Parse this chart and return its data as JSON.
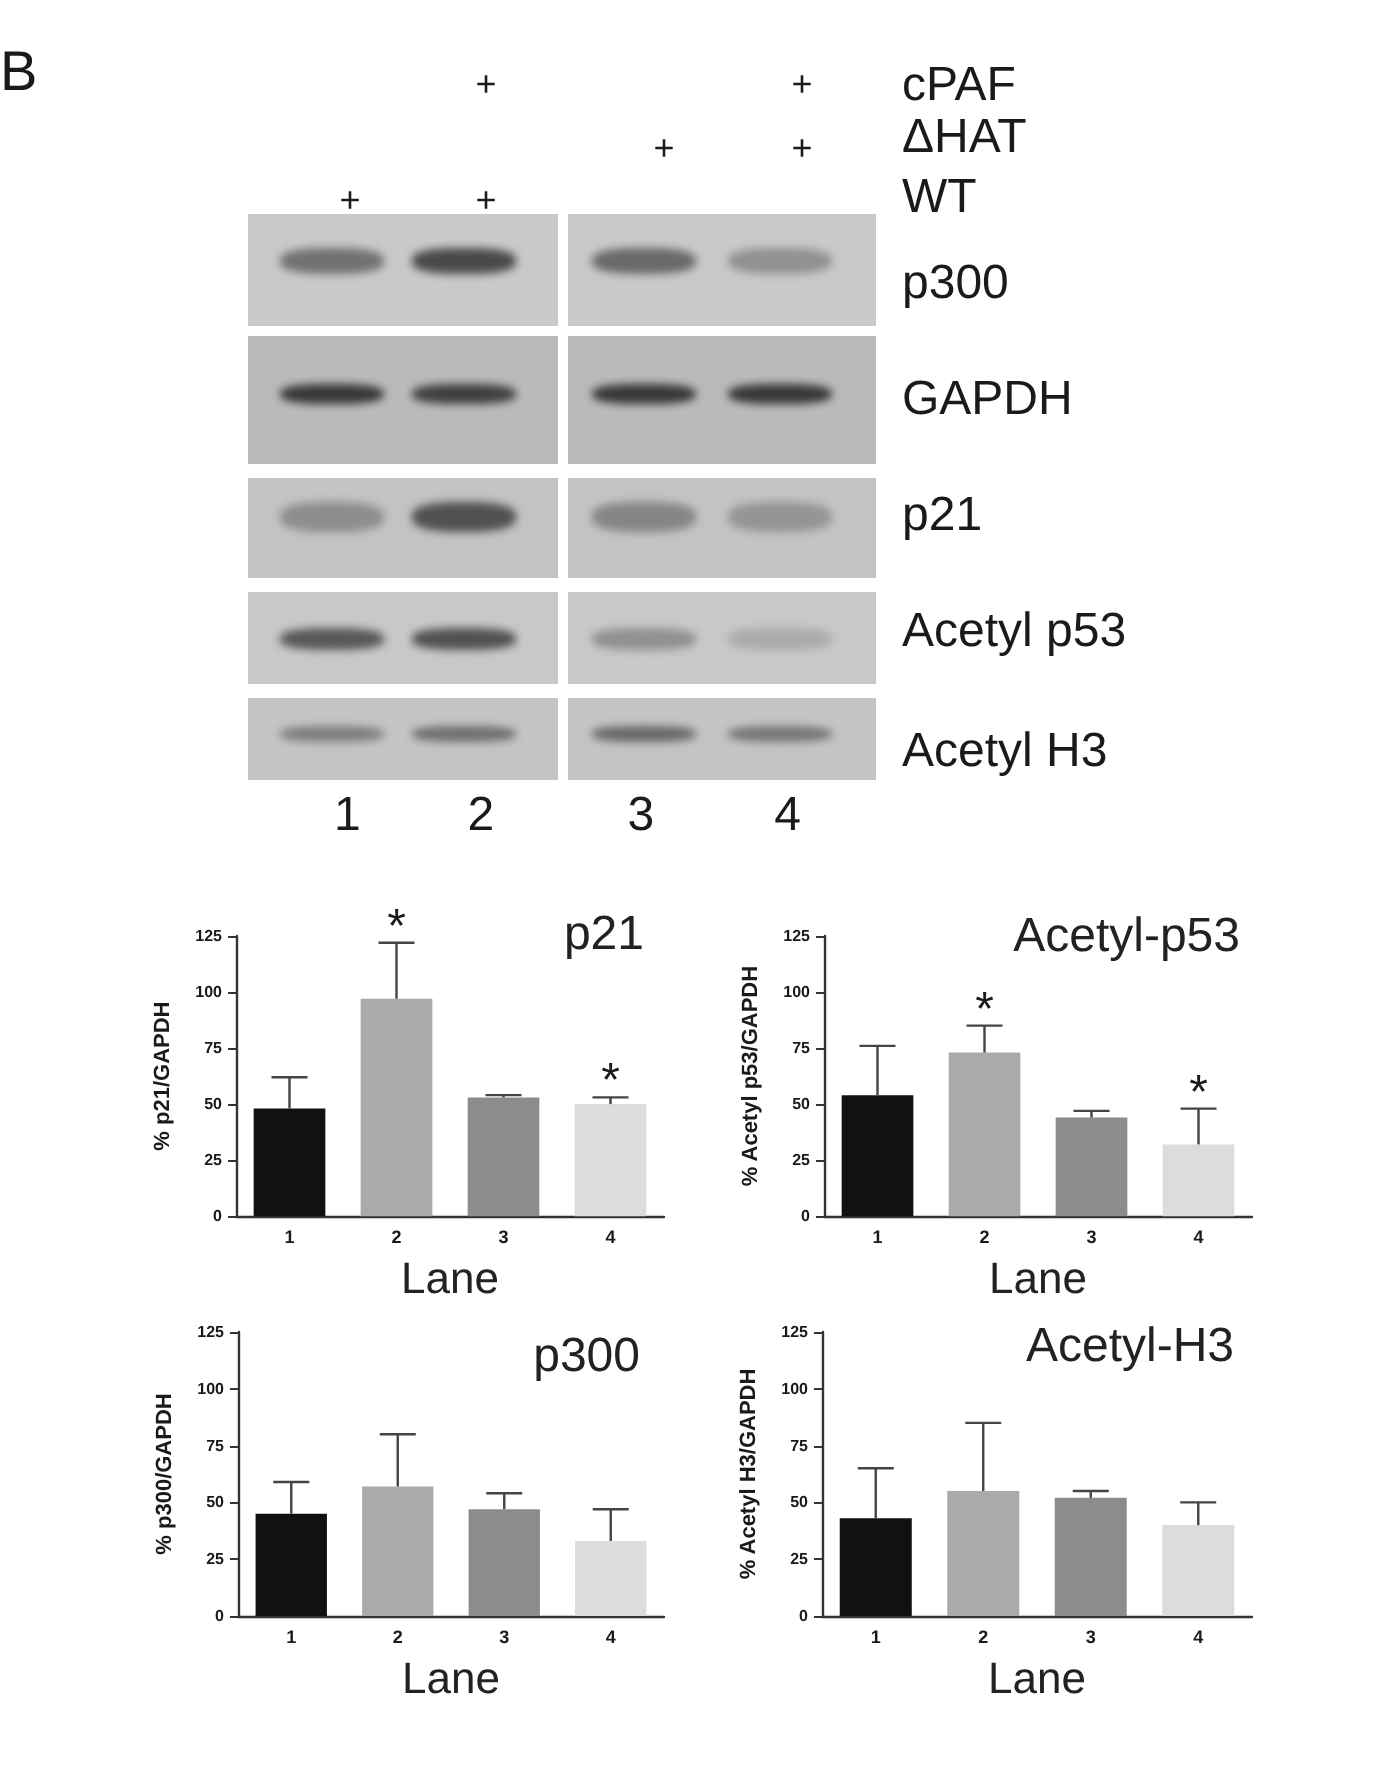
{
  "chart_data": [
    {
      "type": "other",
      "title": "B",
      "y_categories": [
        "cPAF",
        "ΔHAT",
        "WT"
      ],
      "cell_labels": [
        [
          null,
          "+",
          null,
          "+"
        ],
        [
          null,
          null,
          "+",
          "+"
        ],
        [
          "+",
          "+",
          null,
          null
        ]
      ],
      "annotations": [
        "p300",
        "GAPDH",
        "p21",
        "Acetyl p53",
        "Acetyl H3",
        "1 2 3 4"
      ]
    },
    {
      "type": "bar",
      "title": "p21",
      "xlabel": "Lane",
      "ylabel": "% p21/GAPDH",
      "categories": [
        "1",
        "2",
        "3",
        "4"
      ],
      "values": [
        48,
        97,
        53,
        50
      ],
      "errors": [
        [
          48,
          62
        ],
        [
          97,
          122
        ],
        [
          53,
          54
        ],
        [
          50,
          53
        ]
      ],
      "colors": [
        "#111111",
        "#aaaaaa",
        "#8c8c8c",
        "#dcdcdc"
      ],
      "ylim": [
        0,
        125
      ],
      "yticks": [
        0,
        25,
        50,
        75,
        100,
        125
      ],
      "annotations": [
        {
          "text": "*",
          "x": "2",
          "y": 122
        },
        {
          "text": "*",
          "x": "4",
          "y": 53
        }
      ]
    },
    {
      "type": "bar",
      "title": "Acetyl-p53",
      "xlabel": "Lane",
      "ylabel": "% Acetyl p53/GAPDH",
      "categories": [
        "1",
        "2",
        "3",
        "4"
      ],
      "values": [
        54,
        73,
        44,
        32
      ],
      "errors": [
        [
          54,
          76
        ],
        [
          73,
          85
        ],
        [
          44,
          47
        ],
        [
          32,
          48
        ]
      ],
      "colors": [
        "#111111",
        "#aaaaaa",
        "#8c8c8c",
        "#dcdcdc"
      ],
      "ylim": [
        0,
        125
      ],
      "yticks": [
        0,
        25,
        50,
        75,
        100,
        125
      ],
      "annotations": [
        {
          "text": "*",
          "x": "2",
          "y": 85
        },
        {
          "text": "*",
          "x": "4",
          "y": 48
        }
      ]
    },
    {
      "type": "bar",
      "title": "p300",
      "xlabel": "Lane",
      "ylabel": "% p300/GAPDH",
      "categories": [
        "1",
        "2",
        "3",
        "4"
      ],
      "values": [
        45,
        57,
        47,
        33
      ],
      "errors": [
        [
          45,
          59
        ],
        [
          57,
          80
        ],
        [
          47,
          54
        ],
        [
          33,
          47
        ]
      ],
      "colors": [
        "#111111",
        "#aaaaaa",
        "#8c8c8c",
        "#dcdcdc"
      ],
      "ylim": [
        0,
        125
      ],
      "yticks": [
        0,
        25,
        50,
        75,
        100,
        125
      ]
    },
    {
      "type": "bar",
      "title": "Acetyl-H3",
      "xlabel": "Lane",
      "ylabel": "% Acetyl H3/GAPDH",
      "categories": [
        "1",
        "2",
        "3",
        "4"
      ],
      "values": [
        43,
        55,
        52,
        40
      ],
      "errors": [
        [
          43,
          65
        ],
        [
          55,
          85
        ],
        [
          52,
          55
        ],
        [
          40,
          50
        ]
      ],
      "colors": [
        "#111111",
        "#aaaaaa",
        "#8c8c8c",
        "#dcdcdc"
      ],
      "ylim": [
        0,
        125
      ],
      "yticks": [
        0,
        25,
        50,
        75,
        100,
        125
      ]
    }
  ]
}
